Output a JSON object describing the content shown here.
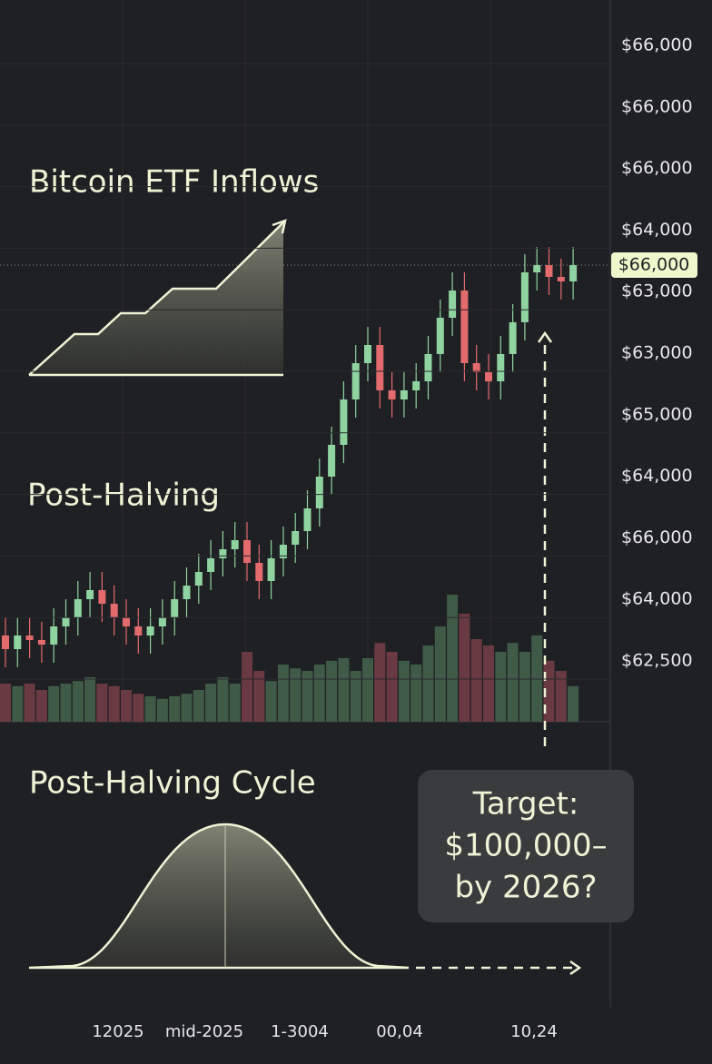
{
  "chart_data": {
    "type": "candlestick",
    "annotations": [
      "Bitcoin ETF Inflows",
      "Post-Halving",
      "Post-Halving Cycle"
    ],
    "target_label": [
      "Target:",
      "$100,000–",
      "by 2026?"
    ],
    "y_axis_labels": [
      "$66,000",
      "$66,000",
      "$66,000",
      "$64,000",
      "$63,000",
      "$63,000",
      "$65,000",
      "$64,000",
      "$66,000",
      "$64,000",
      "$62,500"
    ],
    "price_label": "$66,000",
    "x_labels": [
      "12025",
      "mid-2025",
      "1-3004",
      "00,04",
      "10,24"
    ],
    "ylim": [
      57000,
      71000
    ],
    "y2lim": [
      0,
      100
    ],
    "up_color": "#8fd4a0",
    "down_color": "#e36b6e",
    "open": [
      57840,
      57540,
      57840,
      57740,
      57640,
      58040,
      58240,
      58640,
      58840,
      58540,
      58240,
      58040,
      57840,
      58040,
      58240,
      58640,
      58940,
      59240,
      59540,
      59740,
      59940,
      59440,
      59040,
      59540,
      59840,
      60140,
      60640,
      61340,
      62040,
      63040,
      63840,
      64240,
      63240,
      63040,
      63240,
      63440,
      64040,
      64840,
      65440,
      63840,
      63640,
      63440,
      64040,
      64740,
      65840,
      66000,
      65740,
      65640
    ],
    "high": [
      58240,
      58240,
      58240,
      58140,
      58440,
      58640,
      59040,
      59240,
      59240,
      58940,
      58640,
      58440,
      58440,
      58640,
      59040,
      59340,
      59640,
      59940,
      60140,
      60340,
      60340,
      59840,
      59940,
      60240,
      60540,
      61040,
      61740,
      62440,
      63440,
      64240,
      64640,
      64640,
      63640,
      63640,
      63840,
      64440,
      65240,
      65840,
      65840,
      64240,
      64040,
      64440,
      65140,
      66240,
      66400,
      66400,
      66140,
      66400
    ],
    "low": [
      57140,
      57140,
      57340,
      57240,
      57240,
      57640,
      57840,
      58240,
      58140,
      57840,
      57640,
      57440,
      57440,
      57640,
      57840,
      58240,
      58540,
      58840,
      59140,
      59340,
      59040,
      58640,
      58640,
      59140,
      59440,
      59740,
      60240,
      60940,
      61640,
      62640,
      63440,
      62840,
      62640,
      62640,
      62840,
      63040,
      63640,
      64440,
      63440,
      63240,
      63040,
      63040,
      63640,
      64340,
      65440,
      65340,
      65240,
      65240
    ],
    "close": [
      57540,
      57840,
      57740,
      57640,
      58040,
      58240,
      58640,
      58840,
      58540,
      58240,
      58040,
      57840,
      58040,
      58240,
      58640,
      58940,
      59240,
      59540,
      59740,
      59940,
      59440,
      59040,
      59540,
      59840,
      60140,
      60640,
      61340,
      62040,
      63040,
      63840,
      64240,
      63240,
      63040,
      63240,
      63440,
      64040,
      64840,
      65440,
      63840,
      63640,
      63440,
      64040,
      64740,
      65840,
      66000,
      65740,
      65640,
      66000
    ],
    "volume": [
      30,
      28,
      30,
      25,
      28,
      30,
      32,
      35,
      30,
      28,
      25,
      22,
      20,
      18,
      20,
      22,
      25,
      30,
      35,
      30,
      55,
      40,
      32,
      45,
      42,
      40,
      45,
      48,
      50,
      40,
      50,
      62,
      55,
      48,
      45,
      60,
      75,
      100,
      85,
      65,
      60,
      55,
      62,
      55,
      68,
      48,
      40,
      28
    ]
  }
}
